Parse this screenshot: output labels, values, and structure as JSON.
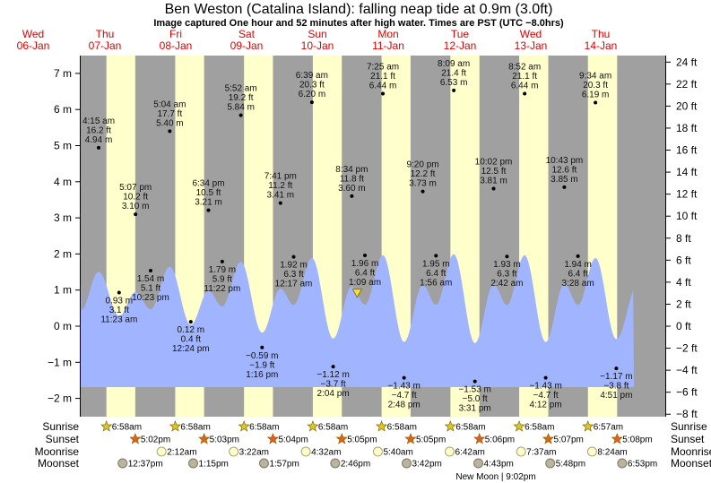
{
  "header": {
    "title": "Ben Weston (Catalina Island): falling  neap tide at 0.9m (3.0ft)",
    "subtitle": "Image captured One hour and 52 minutes after high water. Times are PST (UTC −8.0hrs)"
  },
  "days": [
    {
      "name": "Wed",
      "date": "06-Jan"
    },
    {
      "name": "Thu",
      "date": "07-Jan"
    },
    {
      "name": "Fri",
      "date": "08-Jan"
    },
    {
      "name": "Sat",
      "date": "09-Jan"
    },
    {
      "name": "Sun",
      "date": "10-Jan"
    },
    {
      "name": "Mon",
      "date": "11-Jan"
    },
    {
      "name": "Tue",
      "date": "12-Jan"
    },
    {
      "name": "Wed",
      "date": "13-Jan"
    },
    {
      "name": "Thu",
      "date": "14-Jan"
    }
  ],
  "colors": {
    "night": "#a0a0a0",
    "day": "#ffffcc",
    "water": "#a0b4ff",
    "day_label": "#e00000",
    "marker": "#f0e040"
  },
  "chart_data": {
    "type": "area",
    "title": "Ben Weston (Catalina Island): falling  neap tide at 0.9m (3.0ft)",
    "left_axis": {
      "unit": "m",
      "range": [
        -2,
        7
      ],
      "ticks": [
        "7 m",
        "6 m",
        "5 m",
        "4 m",
        "3 m",
        "2 m",
        "1 m",
        "0 m",
        "−1 m",
        "−2 m"
      ],
      "values": [
        7,
        6,
        5,
        4,
        3,
        2,
        1,
        0,
        -1,
        -2
      ]
    },
    "right_axis": {
      "unit": "ft",
      "range": [
        -8,
        24
      ],
      "ticks": [
        "24 ft",
        "22 ft",
        "20 ft",
        "18 ft",
        "16 ft",
        "14 ft",
        "12 ft",
        "10 ft",
        "8 ft",
        "6 ft",
        "4 ft",
        "2 ft",
        "0 ft",
        "−2 ft",
        "−4 ft",
        "−6 ft",
        "−8 ft"
      ],
      "values": [
        24,
        22,
        20,
        18,
        16,
        14,
        12,
        10,
        8,
        6,
        4,
        2,
        0,
        -2,
        -4,
        -6,
        -8
      ]
    },
    "current": {
      "day": "10-Jan",
      "time": "10:26 pm",
      "value_m": 0.9
    },
    "extremes": [
      {
        "day": "07-Jan",
        "time": "4:15 am",
        "ft": "16.2 ft",
        "m": "4.94 m",
        "value_m": 4.94
      },
      {
        "day": "07-Jan",
        "time": "11:23 am",
        "ft": "3.1 ft",
        "m": "0.93 m",
        "value_m": 0.93
      },
      {
        "day": "07-Jan",
        "time": "5:07 pm",
        "ft": "10.2 ft",
        "m": "3.10 m",
        "value_m": 3.1
      },
      {
        "day": "07-Jan",
        "time": "10:23 pm",
        "ft": "5.1 ft",
        "m": "1.54 m",
        "value_m": 1.54
      },
      {
        "day": "08-Jan",
        "time": "5:04 am",
        "ft": "17.7 ft",
        "m": "5.40 m",
        "value_m": 5.4
      },
      {
        "day": "08-Jan",
        "time": "12:24 pm",
        "ft": "0.4 ft",
        "m": "0.12 m",
        "value_m": 0.12
      },
      {
        "day": "08-Jan",
        "time": "6:34 pm",
        "ft": "10.5 ft",
        "m": "3.21 m",
        "value_m": 3.21
      },
      {
        "day": "08-Jan",
        "time": "11:22 pm",
        "ft": "5.9 ft",
        "m": "1.79 m",
        "value_m": 1.79
      },
      {
        "day": "09-Jan",
        "time": "5:52 am",
        "ft": "19.2 ft",
        "m": "5.84 m",
        "value_m": 5.84
      },
      {
        "day": "09-Jan",
        "time": "1:16 pm",
        "ft": "−1.9 ft",
        "m": "−0.59 m",
        "value_m": -0.59
      },
      {
        "day": "09-Jan",
        "time": "7:41 pm",
        "ft": "11.2 ft",
        "m": "3.41 m",
        "value_m": 3.41
      },
      {
        "day": "10-Jan",
        "time": "12:17 am",
        "ft": "6.3 ft",
        "m": "1.92 m",
        "value_m": 1.92
      },
      {
        "day": "10-Jan",
        "time": "6:39 am",
        "ft": "20.3 ft",
        "m": "6.20 m",
        "value_m": 6.2
      },
      {
        "day": "10-Jan",
        "time": "2:04 pm",
        "ft": "−3.7 ft",
        "m": "−1.12 m",
        "value_m": -1.12
      },
      {
        "day": "10-Jan",
        "time": "8:34 pm",
        "ft": "11.8 ft",
        "m": "3.60 m",
        "value_m": 3.6
      },
      {
        "day": "11-Jan",
        "time": "1:09 am",
        "ft": "6.4 ft",
        "m": "1.96 m",
        "value_m": 1.96
      },
      {
        "day": "11-Jan",
        "time": "7:25 am",
        "ft": "21.1 ft",
        "m": "6.44 m",
        "value_m": 6.44
      },
      {
        "day": "11-Jan",
        "time": "2:48 pm",
        "ft": "−4.7 ft",
        "m": "−1.43 m",
        "value_m": -1.43
      },
      {
        "day": "11-Jan",
        "time": "9:20 pm",
        "ft": "12.2 ft",
        "m": "3.73 m",
        "value_m": 3.73
      },
      {
        "day": "12-Jan",
        "time": "1:56 am",
        "ft": "6.4 ft",
        "m": "1.95 m",
        "value_m": 1.95
      },
      {
        "day": "12-Jan",
        "time": "8:09 am",
        "ft": "21.4 ft",
        "m": "6.53 m",
        "value_m": 6.53
      },
      {
        "day": "12-Jan",
        "time": "3:31 pm",
        "ft": "−5.0 ft",
        "m": "−1.53 m",
        "value_m": -1.53
      },
      {
        "day": "12-Jan",
        "time": "10:02 pm",
        "ft": "12.5 ft",
        "m": "3.81 m",
        "value_m": 3.81
      },
      {
        "day": "13-Jan",
        "time": "2:42 am",
        "ft": "6.3 ft",
        "m": "1.93 m",
        "value_m": 1.93
      },
      {
        "day": "13-Jan",
        "time": "8:52 am",
        "ft": "21.1 ft",
        "m": "6.44 m",
        "value_m": 6.44
      },
      {
        "day": "13-Jan",
        "time": "4:12 pm",
        "ft": "−4.7 ft",
        "m": "−1.43 m",
        "value_m": -1.43
      },
      {
        "day": "13-Jan",
        "time": "10:43 pm",
        "ft": "12.6 ft",
        "m": "3.85 m",
        "value_m": 3.85
      },
      {
        "day": "14-Jan",
        "time": "3:28 am",
        "ft": "6.4 ft",
        "m": "1.94 m",
        "value_m": 1.94
      },
      {
        "day": "14-Jan",
        "time": "9:34 am",
        "ft": "20.3 ft",
        "m": "6.19 m",
        "value_m": 6.19
      },
      {
        "day": "14-Jan",
        "time": "4:51 pm",
        "ft": "−3.8 ft",
        "m": "−1.17 m",
        "value_m": -1.17
      }
    ]
  },
  "events": {
    "sunrise": {
      "label": "Sunrise",
      "items": [
        {
          "day": "07-Jan",
          "time": "6:58am"
        },
        {
          "day": "08-Jan",
          "time": "6:58am"
        },
        {
          "day": "09-Jan",
          "time": "6:58am"
        },
        {
          "day": "10-Jan",
          "time": "6:58am"
        },
        {
          "day": "11-Jan",
          "time": "6:58am"
        },
        {
          "day": "12-Jan",
          "time": "6:58am"
        },
        {
          "day": "13-Jan",
          "time": "6:58am"
        },
        {
          "day": "14-Jan",
          "time": "6:57am"
        }
      ]
    },
    "sunset": {
      "label": "Sunset",
      "items": [
        {
          "day": "07-Jan",
          "time": "5:02pm"
        },
        {
          "day": "08-Jan",
          "time": "5:03pm"
        },
        {
          "day": "09-Jan",
          "time": "5:04pm"
        },
        {
          "day": "10-Jan",
          "time": "5:05pm"
        },
        {
          "day": "11-Jan",
          "time": "5:05pm"
        },
        {
          "day": "12-Jan",
          "time": "5:06pm"
        },
        {
          "day": "13-Jan",
          "time": "5:07pm"
        },
        {
          "day": "14-Jan",
          "time": "5:08pm"
        }
      ]
    },
    "moonrise": {
      "label": "Moonrise",
      "items": [
        {
          "day": "08-Jan",
          "time": "2:12am"
        },
        {
          "day": "09-Jan",
          "time": "3:22am"
        },
        {
          "day": "10-Jan",
          "time": "4:32am"
        },
        {
          "day": "11-Jan",
          "time": "5:40am"
        },
        {
          "day": "12-Jan",
          "time": "6:42am"
        },
        {
          "day": "13-Jan",
          "time": "7:37am"
        },
        {
          "day": "14-Jan",
          "time": "8:24am"
        }
      ]
    },
    "moonset": {
      "label": "Moonset",
      "items": [
        {
          "day": "07-Jan",
          "time": "12:37pm"
        },
        {
          "day": "08-Jan",
          "time": "1:15pm"
        },
        {
          "day": "09-Jan",
          "time": "1:57pm"
        },
        {
          "day": "10-Jan",
          "time": "2:46pm"
        },
        {
          "day": "11-Jan",
          "time": "3:42pm"
        },
        {
          "day": "12-Jan",
          "time": "4:43pm"
        },
        {
          "day": "13-Jan",
          "time": "5:48pm"
        },
        {
          "day": "14-Jan",
          "time": "6:53pm"
        }
      ]
    },
    "moon_phase": "New Moon | 9:02pm"
  }
}
